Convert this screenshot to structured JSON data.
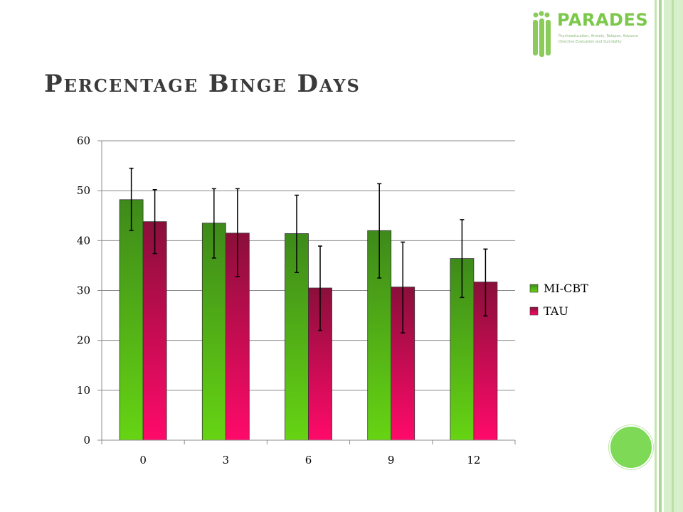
{
  "title": "Percentage Binge Days",
  "logo": {
    "name": "PARADES",
    "tagline_1": "Psychoeducation, Anxiety, Relapse, Advance",
    "tagline_2": "Directive Evaluation and Suicidality"
  },
  "colors": {
    "mi_cbt_top": "#3e8a1a",
    "mi_cbt_bottom": "#66d413",
    "tau_top": "#8a0f3a",
    "tau_bottom": "#ff0a6a",
    "accent_green": "#7ed957"
  },
  "chart_data": {
    "type": "bar",
    "categories": [
      "0",
      "3",
      "6",
      "9",
      "12"
    ],
    "series": [
      {
        "name": "MI-CBT",
        "values": [
          48.2,
          43.5,
          41.4,
          42.0,
          36.4
        ],
        "err_low": [
          42.0,
          36.5,
          33.6,
          32.5,
          28.6
        ],
        "err_high": [
          54.5,
          50.4,
          49.1,
          51.4,
          44.2
        ]
      },
      {
        "name": "TAU",
        "values": [
          43.8,
          41.5,
          30.5,
          30.7,
          31.7
        ],
        "err_low": [
          37.4,
          32.8,
          22.0,
          21.5,
          24.9
        ],
        "err_high": [
          50.2,
          50.4,
          38.9,
          39.7,
          38.3
        ]
      }
    ],
    "yticks": [
      "0",
      "10",
      "20",
      "30",
      "40",
      "50",
      "60"
    ],
    "ylim": [
      0,
      60
    ],
    "grid": true,
    "legend_position": "right"
  }
}
